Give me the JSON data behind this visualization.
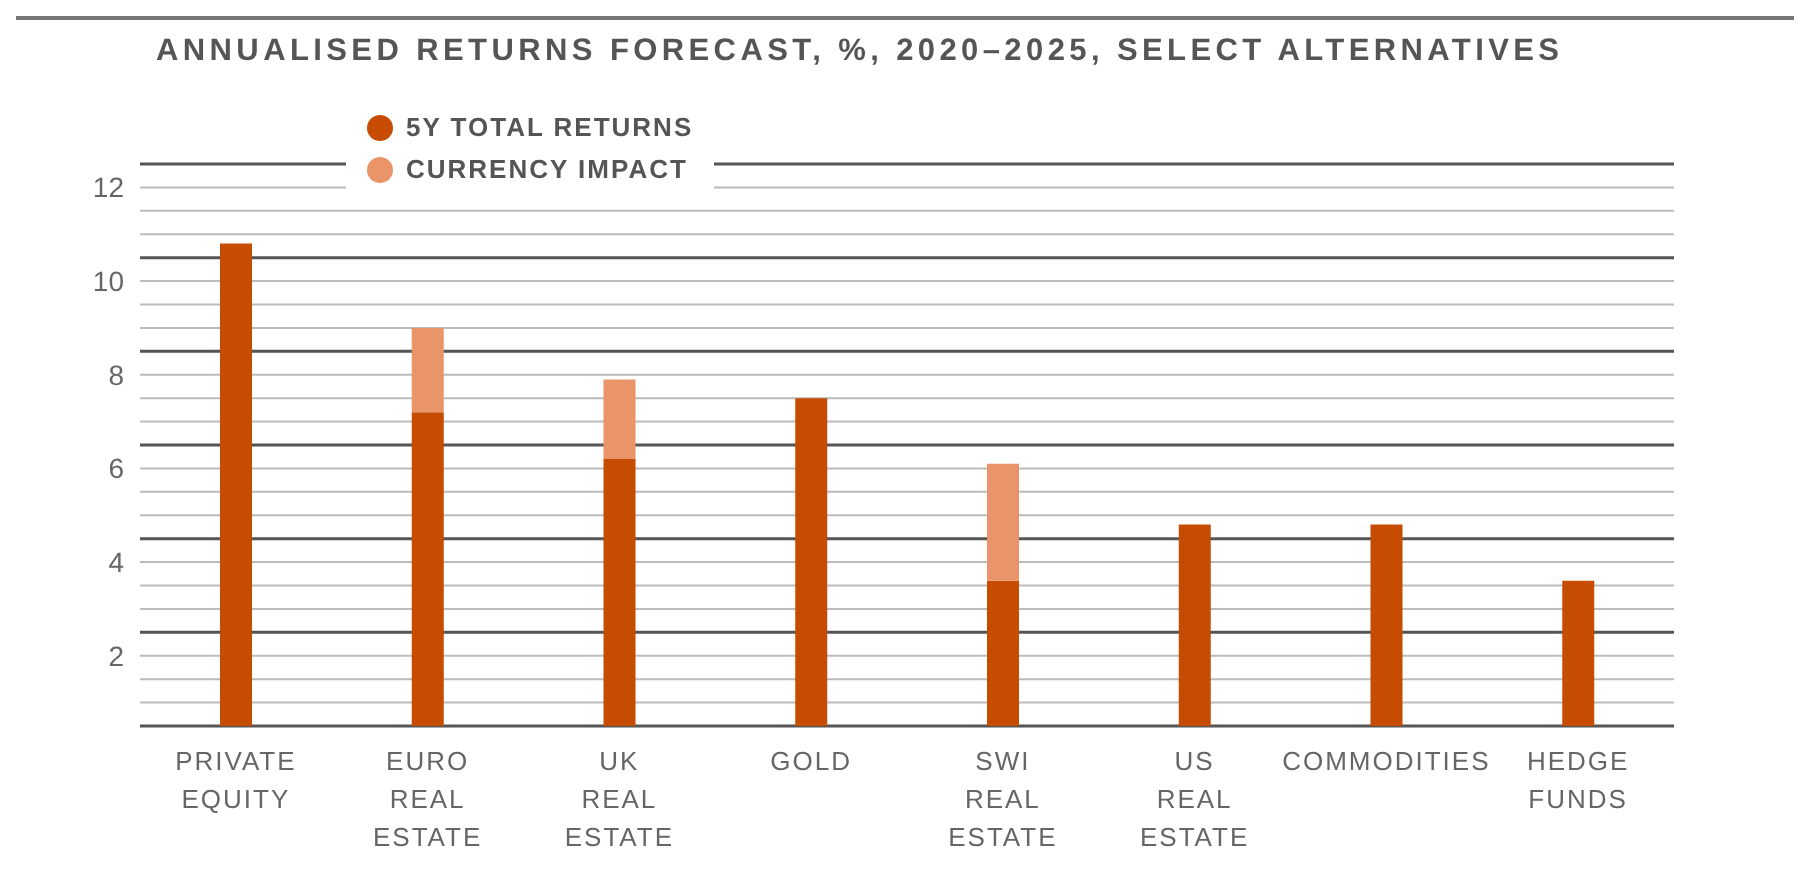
{
  "chart_data": {
    "type": "bar",
    "title": "ANNUALISED RETURNS FORECAST, %, 2020–2025, SELECT ALTERNATIVES",
    "categories": [
      "PRIVATE EQUITY",
      "EURO REAL ESTATE",
      "UK REAL ESTATE",
      "GOLD",
      "SWI REAL ESTATE",
      "US REAL ESTATE",
      "COMMODITIES",
      "HEDGE FUNDS"
    ],
    "stacked": true,
    "series": [
      {
        "name": "5Y TOTAL RETURNS",
        "color": "#c54c00",
        "values": [
          10.8,
          7.2,
          6.2,
          7.5,
          3.6,
          4.8,
          4.8,
          3.6
        ]
      },
      {
        "name": "CURRENCY IMPACT",
        "color": "#ea946a",
        "values": [
          null,
          1.8,
          1.7,
          null,
          2.5,
          null,
          null,
          null
        ]
      }
    ],
    "ylim": [
      0.5,
      12.5
    ],
    "yticks": [
      {
        "value": 0.5,
        "label": null
      },
      {
        "value": 1,
        "label": null
      },
      {
        "value": 1.5,
        "label": null
      },
      2,
      {
        "value": 2.5,
        "label": null
      },
      {
        "value": 3,
        "label": null
      },
      {
        "value": 3.5,
        "label": null
      },
      4,
      {
        "value": 4.5,
        "label": null
      },
      {
        "value": 5,
        "label": null
      },
      {
        "value": 5.5,
        "label": null
      },
      6,
      {
        "value": 6.5,
        "label": null
      },
      {
        "value": 7,
        "label": null
      },
      {
        "value": 7.5,
        "label": null
      },
      8,
      {
        "value": 8.5,
        "label": null
      },
      {
        "value": 9,
        "label": null
      },
      {
        "value": 9.5,
        "label": null
      },
      10,
      {
        "value": 10.5,
        "label": null
      },
      {
        "value": 11,
        "label": null
      },
      {
        "value": 11.5,
        "label": null
      },
      12,
      {
        "value": 12.5,
        "label": null
      }
    ],
    "grid": "y",
    "legend": "top left"
  }
}
